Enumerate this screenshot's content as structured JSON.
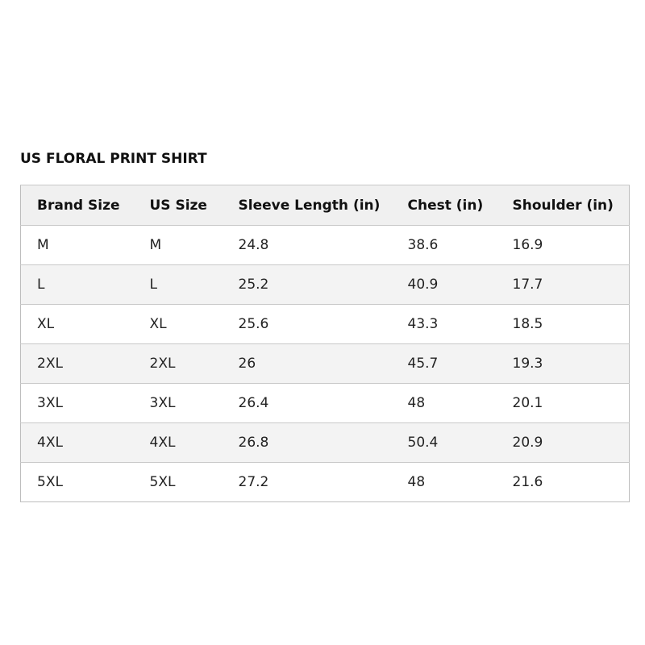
{
  "title": "US FLORAL PRINT SHIRT",
  "table": {
    "headers": [
      "Brand Size",
      "US Size",
      "Sleeve Length (in)",
      "Chest (in)",
      "Shoulder (in)"
    ],
    "rows": [
      [
        "M",
        "M",
        "24.8",
        "38.6",
        "16.9"
      ],
      [
        "L",
        "L",
        "25.2",
        "40.9",
        "17.7"
      ],
      [
        "XL",
        "XL",
        "25.6",
        "43.3",
        "18.5"
      ],
      [
        "2XL",
        "2XL",
        "26",
        "45.7",
        "19.3"
      ],
      [
        "3XL",
        "3XL",
        "26.4",
        "48",
        "20.1"
      ],
      [
        "4XL",
        "4XL",
        "26.8",
        "50.4",
        "20.9"
      ],
      [
        "5XL",
        "5XL",
        "27.2",
        "48",
        "21.6"
      ]
    ]
  }
}
